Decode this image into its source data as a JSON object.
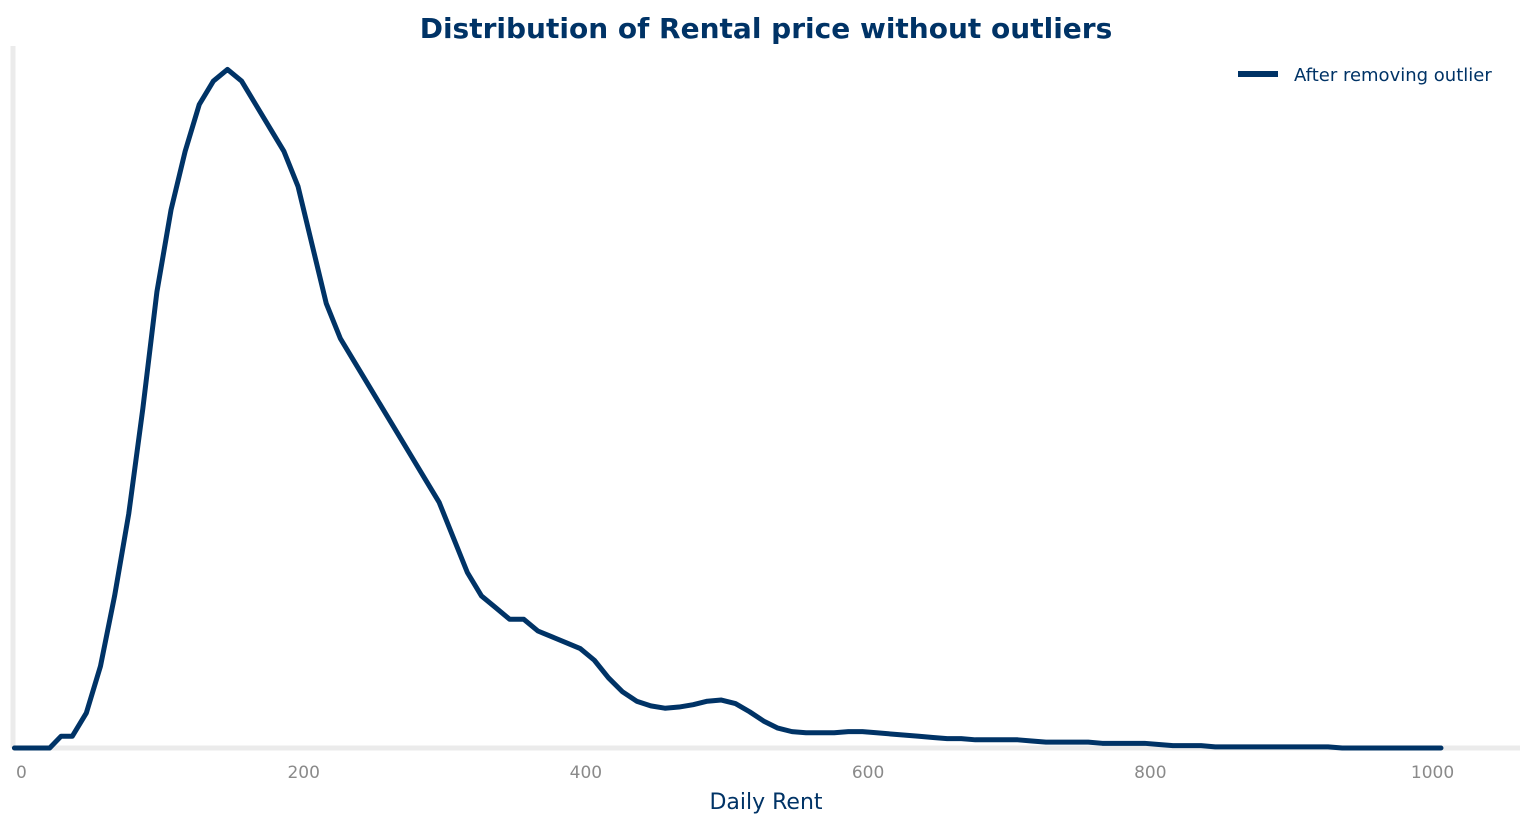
{
  "chart_data": {
    "type": "line",
    "title": "Distribution of Rental price without outliers",
    "xlabel": "Daily Rent",
    "ylabel": "",
    "xlim": [
      -6,
      1062
    ],
    "ylim": [
      0,
      0.006
    ],
    "xticks": [
      0,
      200,
      400,
      600,
      800,
      1000
    ],
    "yticks_visible": false,
    "grid": false,
    "legend_position": "top-right",
    "colors": {
      "series": "#003366",
      "axis": "#ebebeb",
      "tick_label": "#8a8a8a",
      "text": "#003366"
    },
    "series": [
      {
        "name": "After removing outlier",
        "x": [
          -5,
          0,
          10,
          20,
          28,
          36,
          46,
          56,
          66,
          76,
          86,
          96,
          106,
          116,
          126,
          136,
          146,
          156,
          166,
          176,
          186,
          196,
          206,
          216,
          226,
          236,
          246,
          256,
          266,
          276,
          286,
          296,
          306,
          316,
          326,
          336,
          346,
          356,
          366,
          376,
          386,
          396,
          406,
          416,
          426,
          436,
          446,
          456,
          466,
          476,
          486,
          496,
          506,
          516,
          526,
          536,
          546,
          556,
          566,
          576,
          586,
          596,
          606,
          616,
          626,
          636,
          646,
          656,
          666,
          676,
          686,
          696,
          706,
          716,
          726,
          736,
          746,
          756,
          766,
          776,
          786,
          796,
          806,
          816,
          826,
          836,
          846,
          856,
          866,
          876,
          886,
          896,
          906,
          916,
          926,
          936,
          946,
          956,
          966,
          976,
          986,
          996,
          1006
        ],
        "y": [
          0,
          0.0,
          0.0,
          0.0,
          0.0001,
          0.0001,
          0.0003,
          0.0007,
          0.0013,
          0.002,
          0.0029,
          0.0039,
          0.0046,
          0.0051,
          0.0055,
          0.0057,
          0.0058,
          0.0057,
          0.0055,
          0.0053,
          0.0051,
          0.0048,
          0.0043,
          0.0038,
          0.0035,
          0.0033,
          0.0031,
          0.0029,
          0.0027,
          0.0025,
          0.0023,
          0.0021,
          0.0018,
          0.0015,
          0.0013,
          0.0012,
          0.0011,
          0.0011,
          0.001,
          0.00095,
          0.0009,
          0.00085,
          0.00075,
          0.0006,
          0.00048,
          0.0004,
          0.00036,
          0.00034,
          0.00035,
          0.00037,
          0.0004,
          0.00041,
          0.00038,
          0.00031,
          0.00023,
          0.00017,
          0.00014,
          0.00013,
          0.00013,
          0.00013,
          0.00014,
          0.00014,
          0.00013,
          0.00012,
          0.00011,
          0.0001,
          9e-05,
          8e-05,
          8e-05,
          7e-05,
          7e-05,
          7e-05,
          7e-05,
          6e-05,
          5e-05,
          5e-05,
          5e-05,
          5e-05,
          4e-05,
          4e-05,
          4e-05,
          4e-05,
          3e-05,
          2e-05,
          2e-05,
          2e-05,
          1e-05,
          1e-05,
          1e-05,
          1e-05,
          1e-05,
          1e-05,
          1e-05,
          1e-05,
          1e-05,
          0.0,
          0.0,
          0.0,
          0.0,
          0.0,
          0.0,
          0.0,
          0.0
        ]
      }
    ]
  }
}
